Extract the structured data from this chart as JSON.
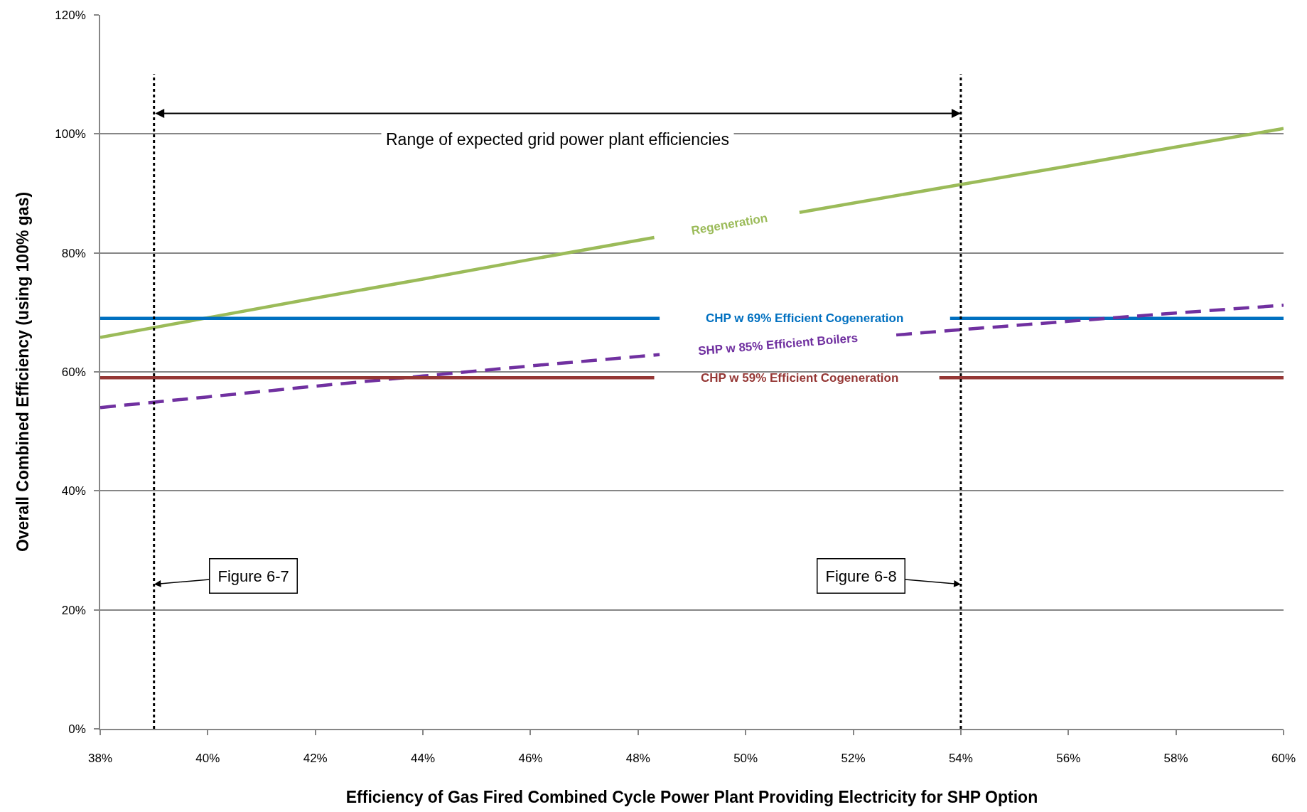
{
  "chart_data": {
    "type": "line",
    "xlabel": "Efficiency of Gas Fired Combined Cycle Power Plant Providing Electricity for SHP Option",
    "ylabel": "Overall Combined Efficiency (using 100% gas)",
    "annotations": [
      "Range of expected grid power plant efficiencies"
    ],
    "xlim": [
      38,
      60
    ],
    "xticks": [
      {
        "value": 38,
        "label": "38%"
      },
      {
        "value": 40,
        "label": "40%"
      },
      {
        "value": 42,
        "label": "42%"
      },
      {
        "value": 44,
        "label": "44%"
      },
      {
        "value": 46,
        "label": "46%"
      },
      {
        "value": 48,
        "label": "48%"
      },
      {
        "value": 50,
        "label": "50%"
      },
      {
        "value": 52,
        "label": "52%"
      },
      {
        "value": 54,
        "label": "54%"
      },
      {
        "value": 56,
        "label": "56%"
      },
      {
        "value": 58,
        "label": "58%"
      },
      {
        "value": 60,
        "label": "60%"
      }
    ],
    "ylim": [
      0,
      120
    ],
    "yticks": [
      {
        "value": 0,
        "label": "0%"
      },
      {
        "value": 20,
        "label": "20%"
      },
      {
        "value": 40,
        "label": "40%"
      },
      {
        "value": 60,
        "label": "60%"
      },
      {
        "value": 80,
        "label": "80%"
      },
      {
        "value": 100,
        "label": "100%"
      },
      {
        "value": 120,
        "label": "120%"
      }
    ],
    "grid": "y",
    "legend": false,
    "series": [
      {
        "name": "Regeneration",
        "color": "#9bbb59",
        "x": [
          38,
          40,
          42,
          44,
          46,
          48.3,
          49.7,
          51.0,
          54,
          56,
          58,
          60
        ],
        "values": [
          65.8,
          69.1,
          72.4,
          75.6,
          78.9,
          82.6,
          null,
          86.8,
          91.5,
          94.6,
          97.8,
          100.9
        ]
      },
      {
        "name": "CHP w 69% Efficient Cogeneration",
        "color": "#0070c0",
        "x": [
          38,
          48.4,
          51.1,
          53.8,
          60
        ],
        "values": [
          69,
          69,
          null,
          69,
          69
        ]
      },
      {
        "name": "SHP w 85% Efficient Boilers",
        "color": "#7030a0",
        "line_style": "dashed",
        "x": [
          38,
          40,
          42,
          44,
          46,
          48.4,
          50.6,
          52.8,
          54,
          56,
          58,
          60
        ],
        "values": [
          54.0,
          55.8,
          57.6,
          59.3,
          61.0,
          62.9,
          null,
          66.2,
          67.1,
          68.5,
          69.9,
          71.2
        ]
      },
      {
        "name": "CHP w 59% Efficient Cogeneration",
        "color": "#953735",
        "x": [
          38,
          48.3,
          51.0,
          53.6,
          60
        ],
        "values": [
          59,
          59,
          null,
          59,
          59
        ]
      }
    ],
    "ref_lines": [
      {
        "axis": "x",
        "value": 39,
        "label": "Figure 6-7",
        "color": "#000000",
        "line_style": "dotted"
      },
      {
        "axis": "x",
        "value": 54,
        "label": "Figure 6-8",
        "color": "#000000",
        "line_style": "dotted"
      }
    ]
  }
}
